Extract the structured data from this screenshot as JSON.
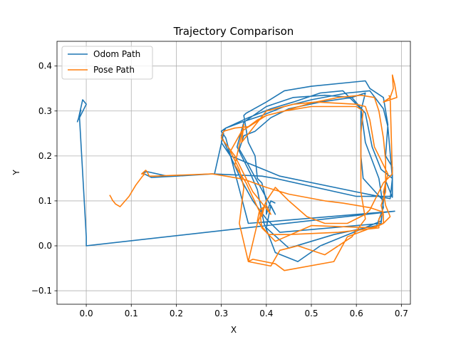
{
  "chart_data": {
    "type": "line",
    "title": "Trajectory Comparison",
    "xlabel": "X",
    "ylabel": "Y",
    "xlim": [
      -0.065,
      0.72
    ],
    "ylim": [
      -0.13,
      0.455
    ],
    "xticks": [
      0.0,
      0.1,
      0.2,
      0.3,
      0.4,
      0.5,
      0.6,
      0.7
    ],
    "xtick_labels": [
      "0.0",
      "0.1",
      "0.2",
      "0.3",
      "0.4",
      "0.5",
      "0.6",
      "0.7"
    ],
    "yticks": [
      -0.1,
      0.0,
      0.1,
      0.2,
      0.3,
      0.4
    ],
    "ytick_labels": [
      "−0.1",
      "0.0",
      "0.1",
      "0.2",
      "0.3",
      "0.4"
    ],
    "grid": true,
    "legend_position": "upper-left",
    "series": [
      {
        "name": "Odom Path",
        "color": "#1f77b4",
        "points": [
          [
            -0.02,
            0.275
          ],
          [
            -0.015,
            0.29
          ],
          [
            -0.012,
            0.302
          ],
          [
            -0.018,
            0.28
          ],
          [
            -0.008,
            0.325
          ],
          [
            0.0,
            0.315
          ],
          [
            -0.015,
            0.285
          ],
          [
            0.0,
            0.02
          ],
          [
            0.0,
            0.0
          ],
          [
            0.685,
            0.077
          ],
          [
            0.36,
            0.05
          ],
          [
            0.31,
            0.24
          ],
          [
            0.3,
            0.255
          ],
          [
            0.31,
            0.262
          ],
          [
            0.345,
            0.275
          ],
          [
            0.39,
            0.29
          ],
          [
            0.44,
            0.31
          ],
          [
            0.5,
            0.325
          ],
          [
            0.58,
            0.34
          ],
          [
            0.63,
            0.345
          ],
          [
            0.66,
            0.305
          ],
          [
            0.67,
            0.265
          ],
          [
            0.68,
            0.15
          ],
          [
            0.68,
            0.108
          ],
          [
            0.665,
            0.145
          ],
          [
            0.66,
            0.1
          ],
          [
            0.655,
            0.055
          ],
          [
            0.52,
            0.0
          ],
          [
            0.47,
            -0.035
          ],
          [
            0.42,
            -0.015
          ],
          [
            0.395,
            0.05
          ],
          [
            0.38,
            0.125
          ],
          [
            0.365,
            0.16
          ],
          [
            0.335,
            0.22
          ],
          [
            0.35,
            0.275
          ],
          [
            0.4,
            0.31
          ],
          [
            0.46,
            0.33
          ],
          [
            0.53,
            0.335
          ],
          [
            0.59,
            0.33
          ],
          [
            0.62,
            0.295
          ],
          [
            0.635,
            0.22
          ],
          [
            0.655,
            0.17
          ],
          [
            0.68,
            0.15
          ],
          [
            0.675,
            0.105
          ],
          [
            0.61,
            0.118
          ],
          [
            0.43,
            0.155
          ],
          [
            0.32,
            0.2
          ],
          [
            0.3,
            0.245
          ],
          [
            0.31,
            0.262
          ],
          [
            0.36,
            0.285
          ],
          [
            0.41,
            0.305
          ],
          [
            0.46,
            0.32
          ],
          [
            0.52,
            0.34
          ],
          [
            0.57,
            0.345
          ],
          [
            0.61,
            0.305
          ],
          [
            0.62,
            0.23
          ],
          [
            0.65,
            0.15
          ],
          [
            0.66,
            0.085
          ],
          [
            0.645,
            0.045
          ],
          [
            0.55,
            0.025
          ],
          [
            0.45,
            -0.005
          ],
          [
            0.4,
            0.04
          ],
          [
            0.41,
            0.09
          ],
          [
            0.42,
            0.07
          ],
          [
            0.36,
            0.18
          ],
          [
            0.34,
            0.215
          ],
          [
            0.35,
            0.245
          ],
          [
            0.375,
            0.255
          ],
          [
            0.41,
            0.285
          ],
          [
            0.45,
            0.305
          ],
          [
            0.52,
            0.32
          ],
          [
            0.59,
            0.33
          ],
          [
            0.62,
            0.34
          ],
          [
            0.61,
            0.3
          ],
          [
            0.61,
            0.2
          ],
          [
            0.615,
            0.15
          ],
          [
            0.66,
            0.1
          ],
          [
            0.655,
            0.05
          ],
          [
            0.43,
            0.03
          ],
          [
            0.4,
            0.06
          ],
          [
            0.37,
            0.1
          ],
          [
            0.345,
            0.145
          ],
          [
            0.32,
            0.2
          ],
          [
            0.3,
            0.23
          ],
          [
            0.305,
            0.25
          ],
          [
            0.285,
            0.16
          ],
          [
            0.28,
            0.16
          ],
          [
            0.2,
            0.155
          ],
          [
            0.145,
            0.152
          ],
          [
            0.125,
            0.162
          ],
          [
            0.135,
            0.165
          ],
          [
            0.18,
            0.155
          ],
          [
            0.28,
            0.16
          ],
          [
            0.39,
            0.155
          ],
          [
            0.42,
            0.15
          ],
          [
            0.6,
            0.11
          ],
          [
            0.665,
            0.11
          ],
          [
            0.68,
            0.11
          ],
          [
            0.68,
            0.175
          ],
          [
            0.665,
            0.2
          ],
          [
            0.67,
            0.27
          ],
          [
            0.66,
            0.33
          ],
          [
            0.63,
            0.35
          ],
          [
            0.62,
            0.367
          ],
          [
            0.5,
            0.355
          ],
          [
            0.44,
            0.345
          ],
          [
            0.4,
            0.32
          ],
          [
            0.355,
            0.295
          ],
          [
            0.35,
            0.29
          ],
          [
            0.36,
            0.23
          ],
          [
            0.375,
            0.2
          ],
          [
            0.38,
            0.15
          ],
          [
            0.39,
            0.14
          ],
          [
            0.4,
            0.1
          ],
          [
            0.4,
            0.07
          ],
          [
            0.41,
            0.1
          ],
          [
            0.42,
            0.095
          ]
        ]
      },
      {
        "name": "Pose Path",
        "color": "#ff7f0e",
        "points": [
          [
            0.052,
            0.113
          ],
          [
            0.055,
            0.108
          ],
          [
            0.058,
            0.102
          ],
          [
            0.065,
            0.093
          ],
          [
            0.075,
            0.087
          ],
          [
            0.095,
            0.11
          ],
          [
            0.11,
            0.135
          ],
          [
            0.125,
            0.155
          ],
          [
            0.13,
            0.16
          ],
          [
            0.123,
            0.16
          ],
          [
            0.132,
            0.168
          ],
          [
            0.135,
            0.165
          ],
          [
            0.14,
            0.155
          ],
          [
            0.15,
            0.155
          ],
          [
            0.28,
            0.16
          ],
          [
            0.31,
            0.155
          ],
          [
            0.35,
            0.148
          ],
          [
            0.4,
            0.13
          ],
          [
            0.45,
            0.115
          ],
          [
            0.53,
            0.1
          ],
          [
            0.57,
            0.095
          ],
          [
            0.63,
            0.085
          ],
          [
            0.66,
            0.075
          ],
          [
            0.65,
            0.06
          ],
          [
            0.65,
            0.04
          ],
          [
            0.56,
            0.03
          ],
          [
            0.45,
            0.025
          ],
          [
            0.405,
            0.025
          ],
          [
            0.38,
            0.055
          ],
          [
            0.385,
            0.08
          ],
          [
            0.4,
            0.09
          ],
          [
            0.41,
            0.07
          ],
          [
            0.37,
            0.12
          ],
          [
            0.35,
            0.16
          ],
          [
            0.33,
            0.2
          ],
          [
            0.3,
            0.24
          ],
          [
            0.305,
            0.255
          ],
          [
            0.33,
            0.262
          ],
          [
            0.36,
            0.265
          ],
          [
            0.38,
            0.28
          ],
          [
            0.4,
            0.29
          ],
          [
            0.44,
            0.3
          ],
          [
            0.5,
            0.318
          ],
          [
            0.56,
            0.33
          ],
          [
            0.61,
            0.335
          ],
          [
            0.64,
            0.33
          ],
          [
            0.65,
            0.3
          ],
          [
            0.66,
            0.24
          ],
          [
            0.665,
            0.19
          ],
          [
            0.665,
            0.12
          ],
          [
            0.655,
            0.09
          ],
          [
            0.66,
            0.07
          ],
          [
            0.66,
            0.05
          ],
          [
            0.64,
            0.04
          ],
          [
            0.5,
            0.045
          ],
          [
            0.42,
            0.01
          ],
          [
            0.39,
            0.04
          ],
          [
            0.385,
            0.08
          ],
          [
            0.395,
            0.085
          ],
          [
            0.39,
            0.065
          ],
          [
            0.355,
            0.14
          ],
          [
            0.33,
            0.18
          ],
          [
            0.35,
            0.27
          ],
          [
            0.345,
            0.23
          ],
          [
            0.4,
            0.3
          ],
          [
            0.46,
            0.315
          ],
          [
            0.51,
            0.32
          ],
          [
            0.6,
            0.315
          ],
          [
            0.62,
            0.31
          ],
          [
            0.63,
            0.28
          ],
          [
            0.64,
            0.22
          ],
          [
            0.67,
            0.16
          ],
          [
            0.66,
            0.12
          ],
          [
            0.665,
            0.09
          ],
          [
            0.675,
            0.065
          ],
          [
            0.66,
            0.05
          ],
          [
            0.58,
            0.02
          ],
          [
            0.55,
            -0.035
          ],
          [
            0.44,
            -0.055
          ],
          [
            0.42,
            -0.04
          ],
          [
            0.37,
            -0.03
          ],
          [
            0.36,
            -0.035
          ],
          [
            0.34,
            0.05
          ],
          [
            0.35,
            0.13
          ],
          [
            0.34,
            0.17
          ],
          [
            0.32,
            0.21
          ],
          [
            0.345,
            0.255
          ],
          [
            0.4,
            0.29
          ],
          [
            0.44,
            0.3
          ],
          [
            0.5,
            0.31
          ],
          [
            0.6,
            0.31
          ],
          [
            0.615,
            0.3
          ],
          [
            0.61,
            0.25
          ],
          [
            0.61,
            0.12
          ],
          [
            0.62,
            0.06
          ],
          [
            0.59,
            0.02
          ],
          [
            0.53,
            -0.02
          ],
          [
            0.47,
            0.0
          ],
          [
            0.43,
            -0.01
          ],
          [
            0.41,
            -0.045
          ],
          [
            0.36,
            -0.035
          ],
          [
            0.38,
            0.05
          ],
          [
            0.4,
            0.1
          ],
          [
            0.42,
            0.13
          ],
          [
            0.45,
            0.1
          ],
          [
            0.49,
            0.065
          ],
          [
            0.53,
            0.05
          ],
          [
            0.58,
            0.05
          ],
          [
            0.62,
            0.07
          ],
          [
            0.63,
            0.08
          ],
          [
            0.66,
            0.14
          ],
          [
            0.68,
            0.16
          ],
          [
            0.675,
            0.33
          ],
          [
            0.66,
            0.32
          ],
          [
            0.69,
            0.33
          ],
          [
            0.685,
            0.36
          ],
          [
            0.68,
            0.38
          ],
          [
            0.682,
            0.35
          ],
          [
            0.675,
            0.33
          ],
          [
            0.672,
            0.335
          ]
        ]
      }
    ]
  }
}
